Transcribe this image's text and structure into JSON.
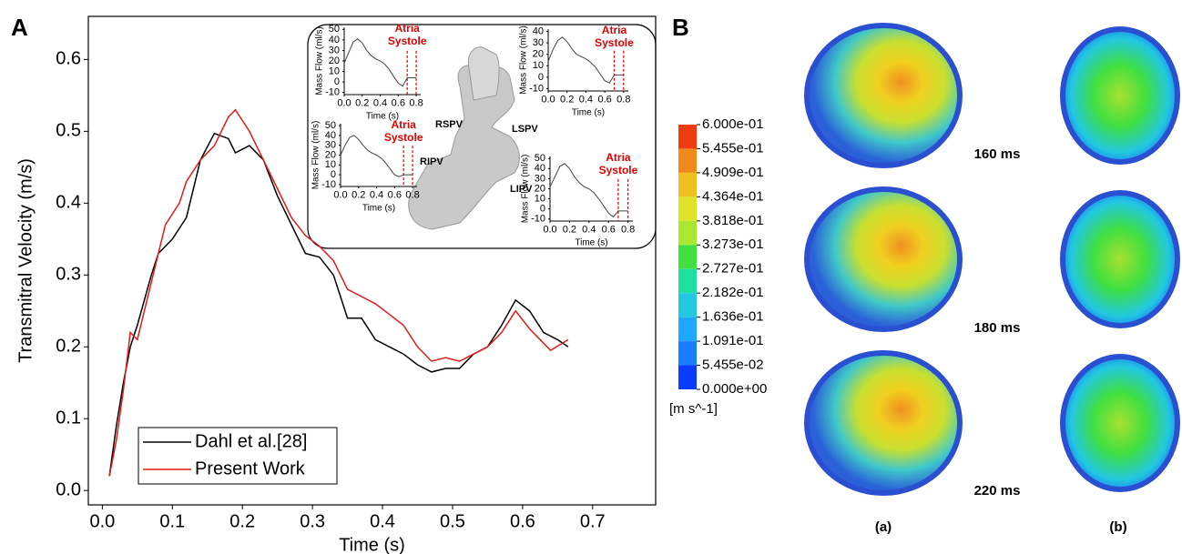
{
  "panel_labels": [
    "A",
    "B"
  ],
  "chart_data": [
    {
      "type": "line",
      "xlabel": "Time (s)",
      "ylabel": "Transmitral Velocity (m/s)",
      "xlim": [
        -0.02,
        0.79
      ],
      "ylim": [
        -0.02,
        0.66
      ],
      "xticks": [
        {
          "value": 0,
          "label": "0.0"
        },
        0.1,
        0.2,
        0.3,
        0.4,
        0.5,
        0.6,
        0.7
      ],
      "yticks": [
        {
          "value": 0,
          "label": "0.0"
        },
        0.1,
        0.2,
        0.3,
        0.4,
        0.5,
        0.6
      ],
      "legend": "lower left",
      "series": [
        {
          "name": "Dahl et al.[28]",
          "color": "#000000",
          "x": [
            0.01,
            0.02,
            0.03,
            0.04,
            0.05,
            0.07,
            0.08,
            0.1,
            0.12,
            0.14,
            0.16,
            0.18,
            0.19,
            0.21,
            0.23,
            0.25,
            0.27,
            0.29,
            0.31,
            0.33,
            0.35,
            0.37,
            0.39,
            0.41,
            0.43,
            0.45,
            0.47,
            0.49,
            0.51,
            0.53,
            0.55,
            0.57,
            0.59,
            0.61,
            0.63,
            0.65,
            0.665
          ],
          "values": [
            0.02,
            0.09,
            0.15,
            0.2,
            0.23,
            0.3,
            0.33,
            0.35,
            0.38,
            0.46,
            0.497,
            0.49,
            0.47,
            0.48,
            0.46,
            0.41,
            0.37,
            0.33,
            0.325,
            0.3,
            0.24,
            0.24,
            0.21,
            0.2,
            0.19,
            0.175,
            0.165,
            0.17,
            0.17,
            0.19,
            0.2,
            0.23,
            0.265,
            0.25,
            0.22,
            0.21,
            0.2
          ]
        },
        {
          "name": "Present Work",
          "color": "#e31a1c",
          "x": [
            0.01,
            0.02,
            0.03,
            0.04,
            0.05,
            0.07,
            0.09,
            0.11,
            0.12,
            0.14,
            0.16,
            0.18,
            0.19,
            0.21,
            0.23,
            0.25,
            0.27,
            0.29,
            0.31,
            0.33,
            0.35,
            0.37,
            0.39,
            0.41,
            0.43,
            0.45,
            0.47,
            0.49,
            0.51,
            0.53,
            0.55,
            0.57,
            0.59,
            0.61,
            0.63,
            0.64,
            0.665
          ],
          "values": [
            0.02,
            0.07,
            0.14,
            0.22,
            0.21,
            0.29,
            0.37,
            0.4,
            0.43,
            0.46,
            0.48,
            0.52,
            0.53,
            0.5,
            0.46,
            0.42,
            0.38,
            0.355,
            0.34,
            0.32,
            0.28,
            0.27,
            0.26,
            0.245,
            0.23,
            0.2,
            0.18,
            0.185,
            0.18,
            0.19,
            0.2,
            0.22,
            0.25,
            0.225,
            0.205,
            0.195,
            0.21
          ]
        }
      ]
    },
    {
      "type": "line",
      "xlabel": "Time (s)",
      "ylabel": "Mass Flow (ml/s)",
      "annotation": [
        "Atria",
        "Systole"
      ],
      "xlim": [
        0,
        0.85
      ],
      "ylim": [
        -12,
        52
      ],
      "xticks": [
        {
          "value": 0,
          "label": "0.0"
        },
        0.2,
        0.4,
        0.6,
        0.8
      ],
      "yticks": [
        -10,
        0,
        10,
        20,
        30,
        40,
        50
      ],
      "vlines": [
        0.7,
        0.8
      ],
      "vline_color": "#e00000",
      "series": [
        {
          "color": "#444444",
          "x": [
            0,
            0.05,
            0.1,
            0.15,
            0.2,
            0.25,
            0.3,
            0.35,
            0.4,
            0.45,
            0.5,
            0.55,
            0.6,
            0.65,
            0.7,
            0.75,
            0.8
          ],
          "values": [
            18,
            28,
            38,
            41,
            37,
            30,
            25,
            22,
            20,
            17,
            12,
            5,
            -1,
            -4,
            4,
            4,
            4
          ]
        }
      ]
    },
    {
      "type": "line",
      "xlabel": "Time (s)",
      "ylabel": "Mass Flow (ml/s)",
      "annotation": [
        "Atria",
        "Systole"
      ],
      "xlim": [
        0,
        0.85
      ],
      "ylim": [
        -12,
        42
      ],
      "xticks": [
        {
          "value": 0,
          "label": "0.0"
        },
        0.2,
        0.4,
        0.6,
        0.8
      ],
      "yticks": [
        -10,
        0,
        10,
        20,
        30,
        40
      ],
      "vlines": [
        0.7,
        0.8
      ],
      "vline_color": "#e00000",
      "series": [
        {
          "color": "#444444",
          "x": [
            0,
            0.05,
            0.1,
            0.15,
            0.2,
            0.25,
            0.3,
            0.35,
            0.4,
            0.45,
            0.5,
            0.55,
            0.6,
            0.65,
            0.7,
            0.75,
            0.8
          ],
          "values": [
            14,
            24,
            32,
            35,
            31,
            25,
            20,
            18,
            16,
            13,
            9,
            3,
            -3,
            -5,
            2,
            2,
            2
          ]
        }
      ]
    },
    {
      "type": "line",
      "xlabel": "Time (s)",
      "ylabel": "Mass Flow (ml/s)",
      "annotation": [
        "Atria",
        "Systole"
      ],
      "xlim": [
        0,
        0.85
      ],
      "ylim": [
        -12,
        52
      ],
      "xticks": [
        {
          "value": 0,
          "label": "0.0"
        },
        0.2,
        0.4,
        0.6,
        0.8
      ],
      "yticks": [
        -10,
        0,
        10,
        20,
        30,
        40,
        50
      ],
      "vlines": [
        0.7,
        0.8
      ],
      "vline_color": "#e00000",
      "series": [
        {
          "color": "#444444",
          "x": [
            0,
            0.05,
            0.1,
            0.15,
            0.2,
            0.25,
            0.3,
            0.35,
            0.4,
            0.45,
            0.5,
            0.55,
            0.6,
            0.65,
            0.7,
            0.75,
            0.8
          ],
          "values": [
            20,
            30,
            38,
            40,
            36,
            30,
            25,
            22,
            20,
            17,
            12,
            6,
            0,
            -2,
            0,
            0,
            0
          ]
        }
      ]
    },
    {
      "type": "line",
      "xlabel": "Time (s)",
      "ylabel": "Mass Flow (ml/s)",
      "annotation": [
        "Atria",
        "Systole"
      ],
      "xlim": [
        0,
        0.85
      ],
      "ylim": [
        -12,
        52
      ],
      "xticks": [
        {
          "value": 0,
          "label": "0.0"
        },
        0.2,
        0.4,
        0.6,
        0.8
      ],
      "yticks": [
        -10,
        0,
        10,
        20,
        30,
        40,
        50
      ],
      "vlines": [
        0.7,
        0.8
      ],
      "vline_color": "#e00000",
      "series": [
        {
          "color": "#444444",
          "x": [
            0,
            0.05,
            0.1,
            0.15,
            0.2,
            0.25,
            0.3,
            0.35,
            0.4,
            0.45,
            0.5,
            0.55,
            0.6,
            0.65,
            0.7,
            0.75,
            0.8
          ],
          "values": [
            22,
            32,
            42,
            45,
            40,
            32,
            26,
            22,
            20,
            16,
            10,
            3,
            -4,
            -8,
            -2,
            -2,
            -2
          ]
        }
      ]
    }
  ],
  "anatomy_labels": [
    "RSPV",
    "LSPV",
    "RIPV",
    "LIPV"
  ],
  "colorbar": {
    "lim": [
      0,
      0.6
    ],
    "unit": "[m s^-1]",
    "ticks": [
      {
        "value": 0.6,
        "label": "6.000e-01"
      },
      {
        "value": 0.5455,
        "label": "5.455e-01"
      },
      {
        "value": 0.4909,
        "label": "4.909e-01"
      },
      {
        "value": 0.4364,
        "label": "4.364e-01"
      },
      {
        "value": 0.3818,
        "label": "3.818e-01"
      },
      {
        "value": 0.3273,
        "label": "3.273e-01"
      },
      {
        "value": 0.2727,
        "label": "2.727e-01"
      },
      {
        "value": 0.2182,
        "label": "2.182e-01"
      },
      {
        "value": 0.1636,
        "label": "1.636e-01"
      },
      {
        "value": 0.1091,
        "label": "1.091e-01"
      },
      {
        "value": 0.05455,
        "label": "5.455e-02"
      },
      {
        "value": 0,
        "label": "0.000e+00"
      }
    ],
    "colors": [
      "#f03a10",
      "#f08a1a",
      "#f0c020",
      "#e0e428",
      "#a8e830",
      "#40e040",
      "#1fe0a0",
      "#22c8e0",
      "#1ea8ff",
      "#1a7cff",
      "#0a3cff"
    ]
  },
  "time_labels": [
    "160 ms",
    "180 ms",
    "220 ms"
  ],
  "column_labels": [
    "(a)",
    "(b)"
  ]
}
